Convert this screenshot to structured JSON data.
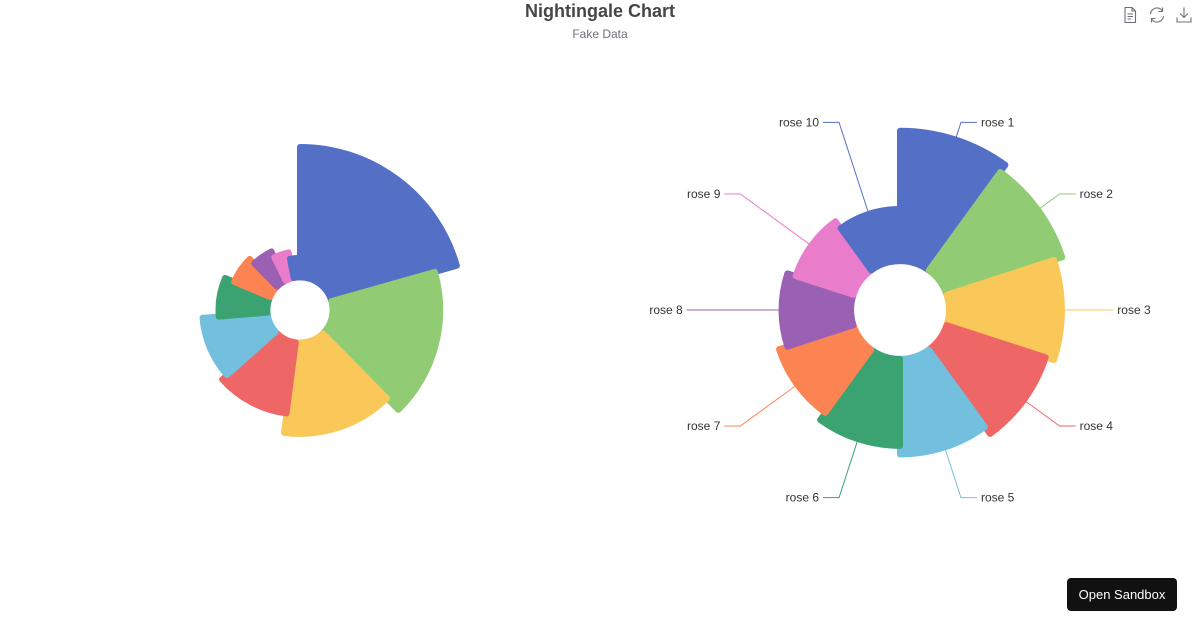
{
  "header": {
    "title": "Nightingale Chart",
    "subtitle": "Fake Data"
  },
  "toolbox": {
    "icons": [
      "data-view-icon",
      "restore-icon",
      "save-as-image-icon"
    ]
  },
  "sandbox": {
    "label": "Open Sandbox"
  },
  "chart_data": {
    "type": "pie",
    "title": "Nightingale Chart",
    "subtitle": "Fake Data",
    "charts": [
      {
        "name": "radius-mode",
        "roseType": "radius",
        "radius_range": [
          20,
          100
        ],
        "show_labels": false,
        "categories": [
          "rose 1",
          "rose 2",
          "rose 3",
          "rose 4",
          "rose 5",
          "rose 6",
          "rose 7",
          "rose 8",
          "rose 9",
          "rose 10"
        ],
        "values": [
          40,
          33,
          28,
          22,
          20,
          15,
          12,
          10,
          8,
          6
        ]
      },
      {
        "name": "area-mode",
        "roseType": "area",
        "radius_range": [
          30,
          110
        ],
        "show_labels": true,
        "categories": [
          "rose 1",
          "rose 2",
          "rose 3",
          "rose 4",
          "rose 5",
          "rose 6",
          "rose 7",
          "rose 8",
          "rose 9",
          "rose 10"
        ],
        "values": [
          30,
          28,
          26,
          24,
          22,
          20,
          18,
          16,
          14,
          12
        ]
      }
    ],
    "colors": [
      "#5470c6",
      "#91cc75",
      "#fac858",
      "#ee6666",
      "#73c0de",
      "#3ba272",
      "#fc8452",
      "#9a60b4",
      "#ea7ccc",
      "#5470c6"
    ],
    "legend": "none"
  }
}
